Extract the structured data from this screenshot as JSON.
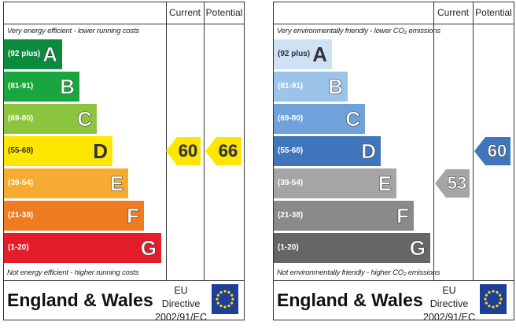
{
  "charts": [
    {
      "id": "energy-efficiency",
      "header": {
        "current": "Current",
        "potential": "Potential"
      },
      "top_caption": "Very energy efficient - lower running costs",
      "bottom_caption": "Not energy efficient - higher running costs",
      "bands": [
        {
          "range": "(92 plus)",
          "letter": "A",
          "color": "#0c8a3e",
          "text_color": "#ffffff"
        },
        {
          "range": "(81-91)",
          "letter": "B",
          "color": "#1aa63e",
          "text_color": "#ffffff"
        },
        {
          "range": "(69-80)",
          "letter": "C",
          "color": "#8dc43e",
          "text_color": "#ffffff"
        },
        {
          "range": "(55-68)",
          "letter": "D",
          "color": "#ffe600",
          "text_color": "#333333"
        },
        {
          "range": "(39-54)",
          "letter": "E",
          "color": "#f6ac32",
          "text_color": "#ffffff"
        },
        {
          "range": "(21-38)",
          "letter": "F",
          "color": "#ef7b22",
          "text_color": "#ffffff"
        },
        {
          "range": "(1-20)",
          "letter": "G",
          "color": "#e31d2a",
          "text_color": "#ffffff"
        }
      ],
      "current": {
        "value": "60",
        "band": "D",
        "color": "#ffe600",
        "text_color": "#333333"
      },
      "potential": {
        "value": "66",
        "band": "D",
        "color": "#ffe600",
        "text_color": "#333333"
      },
      "footer": {
        "title": "England & Wales",
        "directive_line1": "EU Directive",
        "directive_line2": "2002/91/EC"
      }
    },
    {
      "id": "environmental-impact",
      "header": {
        "current": "Current",
        "potential": "Potential"
      },
      "top_caption": "Very environmentally friendly - lower CO₂ emissions",
      "bottom_caption": "Not environmentally friendly - higher CO₂ emissions",
      "bands": [
        {
          "range": "(92 plus)",
          "letter": "A",
          "color": "#cfe2f5",
          "text_color": "#333333"
        },
        {
          "range": "(81-91)",
          "letter": "B",
          "color": "#9cc3ea",
          "text_color": "#ffffff"
        },
        {
          "range": "(69-80)",
          "letter": "C",
          "color": "#6fa1da",
          "text_color": "#ffffff"
        },
        {
          "range": "(55-68)",
          "letter": "D",
          "color": "#3f76bc",
          "text_color": "#ffffff"
        },
        {
          "range": "(39-54)",
          "letter": "E",
          "color": "#a5a5a5",
          "text_color": "#ffffff"
        },
        {
          "range": "(21-38)",
          "letter": "F",
          "color": "#8a8a8a",
          "text_color": "#ffffff"
        },
        {
          "range": "(1-20)",
          "letter": "G",
          "color": "#666666",
          "text_color": "#ffffff"
        }
      ],
      "current": {
        "value": "53",
        "band": "E",
        "color": "#a5a5a5",
        "text_color": "#ffffff"
      },
      "potential": {
        "value": "60",
        "band": "D",
        "color": "#3f76bc",
        "text_color": "#ffffff"
      },
      "footer": {
        "title": "England & Wales",
        "directive_line1": "EU Directive",
        "directive_line2": "2002/91/EC"
      }
    }
  ],
  "icons": {
    "flag": "eu-flag-icon",
    "star_color": "#ffdd00"
  }
}
